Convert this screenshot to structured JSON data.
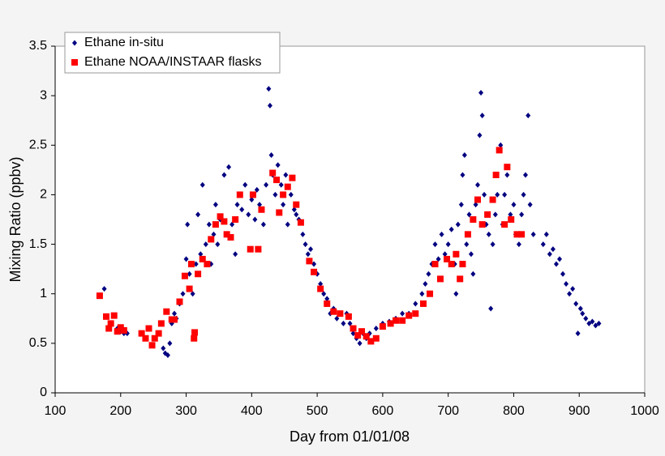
{
  "chart_data": {
    "type": "scatter",
    "xlabel": "Day from 01/01/08",
    "ylabel": "Mixing Ratio (ppbv)",
    "xlim": [
      100,
      1000
    ],
    "xticks": [
      100,
      200,
      300,
      400,
      500,
      600,
      700,
      800,
      900,
      1000
    ],
    "ylim": [
      0,
      3.5
    ],
    "yticks": [
      0,
      0.5,
      1,
      1.5,
      2,
      2.5,
      3,
      3.5
    ],
    "grid": false,
    "legend": "upper left",
    "series": [
      {
        "name": "Ethane in-situ",
        "color": "#000080",
        "marker": "diamond",
        "x": [
          175,
          185,
          195,
          200,
          205,
          210,
          265,
          268,
          272,
          275,
          278,
          282,
          285,
          290,
          295,
          300,
          302,
          305,
          310,
          315,
          318,
          322,
          325,
          330,
          335,
          338,
          342,
          345,
          348,
          352,
          358,
          362,
          365,
          370,
          375,
          378,
          382,
          385,
          390,
          395,
          400,
          405,
          408,
          412,
          418,
          422,
          426,
          428,
          430,
          432,
          436,
          440,
          445,
          448,
          452,
          455,
          460,
          465,
          468,
          472,
          478,
          482,
          486,
          490,
          495,
          500,
          505,
          510,
          515,
          520,
          525,
          530,
          535,
          540,
          545,
          550,
          555,
          560,
          565,
          570,
          575,
          580,
          590,
          600,
          610,
          620,
          630,
          640,
          650,
          660,
          665,
          670,
          675,
          680,
          685,
          690,
          695,
          700,
          705,
          710,
          712,
          715,
          720,
          722,
          725,
          728,
          732,
          735,
          738,
          742,
          745,
          748,
          750,
          752,
          755,
          758,
          762,
          765,
          768,
          772,
          775,
          780,
          783,
          786,
          790,
          795,
          800,
          803,
          808,
          812,
          815,
          818,
          822,
          825,
          830,
          845,
          850,
          855,
          860,
          865,
          870,
          875,
          880,
          885,
          890,
          895,
          898,
          902,
          905,
          910,
          915,
          920,
          925,
          930
        ],
        "values": [
          1.05,
          0.7,
          0.65,
          0.62,
          0.6,
          0.6,
          0.45,
          0.4,
          0.38,
          0.5,
          0.7,
          0.8,
          0.75,
          0.9,
          1.0,
          1.35,
          1.7,
          1.2,
          1.0,
          1.3,
          1.8,
          1.4,
          2.1,
          1.5,
          1.7,
          1.3,
          1.6,
          1.9,
          1.5,
          1.75,
          2.2,
          1.6,
          2.28,
          1.7,
          1.4,
          1.9,
          2.0,
          1.85,
          2.1,
          1.8,
          1.95,
          1.75,
          2.05,
          1.9,
          1.7,
          2.1,
          3.07,
          2.9,
          2.4,
          2.2,
          2.0,
          2.3,
          2.1,
          1.9,
          2.2,
          1.7,
          2.0,
          1.85,
          1.8,
          1.75,
          1.6,
          1.5,
          1.4,
          1.45,
          1.3,
          1.2,
          1.1,
          1.0,
          0.95,
          0.8,
          0.85,
          0.75,
          0.8,
          0.7,
          0.8,
          0.7,
          0.6,
          0.55,
          0.5,
          0.6,
          0.55,
          0.6,
          0.65,
          0.7,
          0.72,
          0.75,
          0.8,
          0.8,
          0.9,
          1.0,
          1.1,
          1.2,
          1.3,
          1.5,
          1.35,
          1.6,
          1.4,
          1.5,
          1.65,
          1.3,
          1.0,
          1.7,
          1.9,
          2.2,
          2.4,
          1.5,
          1.8,
          1.4,
          1.2,
          1.9,
          2.1,
          2.6,
          3.03,
          2.8,
          2.0,
          1.7,
          1.6,
          0.85,
          1.5,
          1.8,
          2.0,
          2.5,
          1.7,
          2.0,
          2.2,
          1.8,
          1.9,
          1.6,
          1.5,
          1.8,
          2.0,
          2.2,
          2.8,
          1.9,
          1.6,
          1.5,
          1.6,
          1.4,
          1.45,
          1.3,
          1.35,
          1.2,
          1.1,
          1.0,
          1.05,
          0.9,
          0.6,
          0.85,
          0.8,
          0.75,
          0.7,
          0.72,
          0.68,
          0.7
        ]
      },
      {
        "name": "Ethane NOAA/INSTAAR flasks",
        "color": "#ff0000",
        "marker": "square",
        "x": [
          168,
          178,
          182,
          185,
          190,
          195,
          200,
          205,
          232,
          238,
          243,
          248,
          252,
          258,
          262,
          270,
          278,
          282,
          290,
          298,
          305,
          308,
          312,
          313,
          318,
          325,
          332,
          338,
          345,
          352,
          358,
          362,
          368,
          375,
          382,
          398,
          402,
          410,
          415,
          432,
          438,
          442,
          448,
          455,
          462,
          468,
          475,
          488,
          495,
          505,
          515,
          525,
          535,
          548,
          555,
          562,
          568,
          575,
          582,
          590,
          600,
          612,
          620,
          630,
          640,
          650,
          662,
          672,
          680,
          688,
          698,
          705,
          712,
          718,
          722,
          730,
          738,
          745,
          752,
          760,
          768,
          773,
          778,
          786,
          790,
          796,
          805,
          812
        ],
        "values": [
          0.98,
          0.77,
          0.65,
          0.7,
          0.78,
          0.62,
          0.66,
          0.63,
          0.6,
          0.55,
          0.65,
          0.48,
          0.55,
          0.6,
          0.7,
          0.82,
          0.74,
          0.74,
          0.92,
          1.18,
          1.05,
          1.3,
          0.55,
          0.61,
          1.2,
          1.35,
          1.3,
          1.55,
          1.7,
          1.78,
          1.73,
          1.6,
          1.57,
          1.75,
          2.0,
          1.45,
          2.0,
          1.45,
          1.85,
          2.22,
          2.15,
          1.82,
          2.0,
          2.08,
          2.17,
          1.9,
          1.72,
          1.33,
          1.22,
          1.05,
          0.9,
          0.82,
          0.8,
          0.77,
          0.65,
          0.58,
          0.62,
          0.57,
          0.52,
          0.55,
          0.67,
          0.7,
          0.73,
          0.73,
          0.78,
          0.8,
          0.9,
          1.0,
          1.3,
          1.15,
          1.35,
          1.3,
          1.4,
          1.15,
          1.3,
          1.6,
          1.75,
          1.95,
          1.7,
          1.8,
          1.95,
          2.2,
          2.45,
          1.7,
          2.28,
          1.75,
          1.6,
          1.6
        ]
      }
    ]
  }
}
